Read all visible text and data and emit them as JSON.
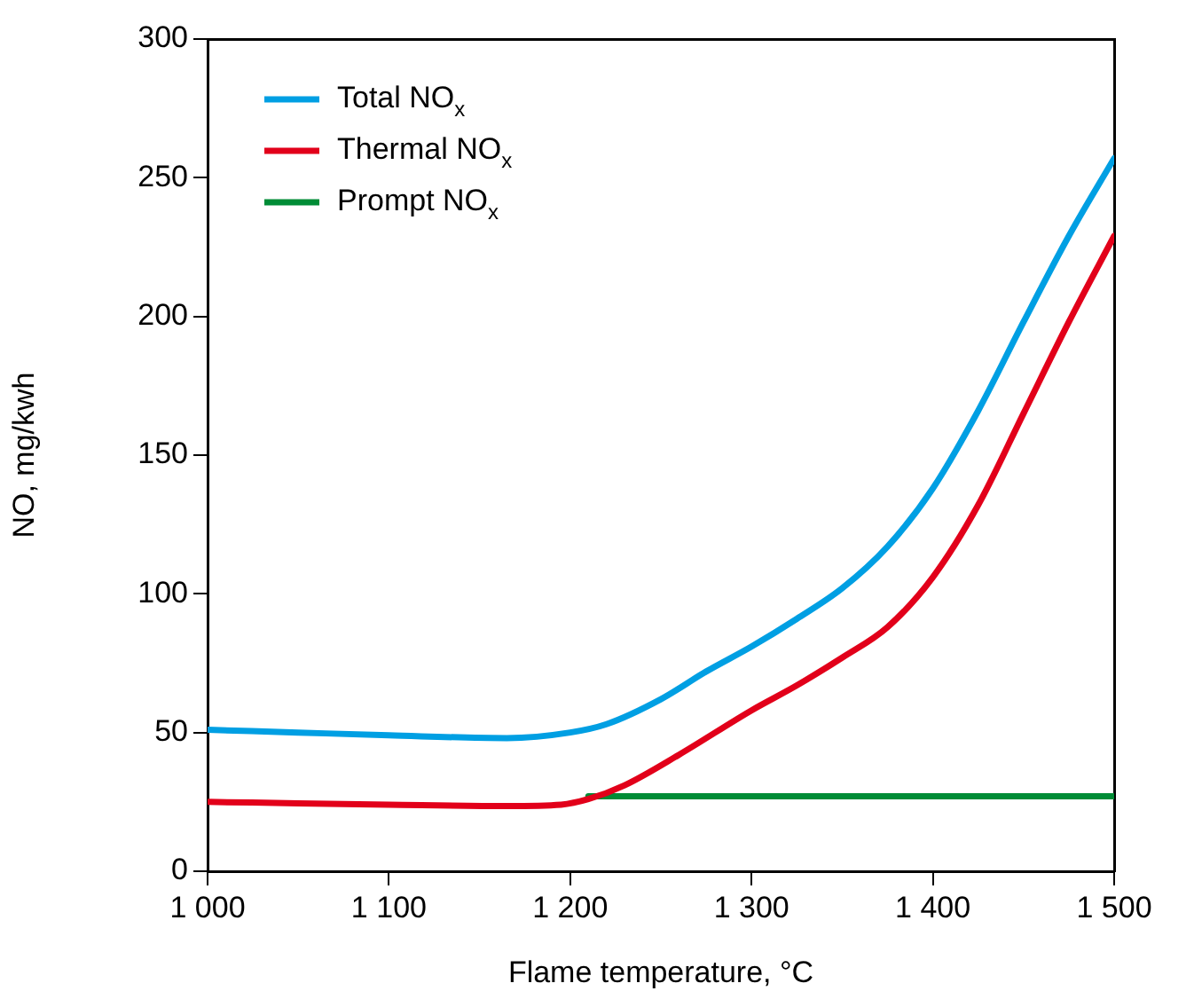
{
  "chart_data": {
    "type": "line",
    "xlabel": "Flame temperature, °C",
    "ylabel": "NO, mg/kwh",
    "xlim": [
      1000,
      1500
    ],
    "xticks": [
      {
        "value": 1000,
        "label": "1 000"
      },
      {
        "value": 1100,
        "label": "1 100"
      },
      {
        "value": 1200,
        "label": "1 200"
      },
      {
        "value": 1300,
        "label": "1 300"
      },
      {
        "value": 1400,
        "label": "1 400"
      },
      {
        "value": 1500,
        "label": "1 500"
      }
    ],
    "ylim": [
      0,
      300
    ],
    "yticks": [
      0,
      50,
      100,
      150,
      200,
      250,
      300
    ],
    "grid": false,
    "legend": "top left",
    "line_style": "solid",
    "marker": "none",
    "series": [
      {
        "name": "Total NO$_{x}$",
        "color": "#009fe3",
        "x": [
          1000,
          1050,
          1100,
          1165,
          1200,
          1220,
          1250,
          1275,
          1300,
          1325,
          1350,
          1375,
          1400,
          1425,
          1450,
          1475,
          1500
        ],
        "values": [
          51,
          50,
          49,
          48,
          50,
          53,
          62,
          72,
          81,
          91,
          102,
          117,
          138,
          166,
          198,
          229,
          257
        ]
      },
      {
        "name": "Thermal NO$_{x}$",
        "color": "#e2001a",
        "x": [
          1000,
          1050,
          1100,
          1165,
          1195,
          1210,
          1230,
          1260,
          1300,
          1325,
          1350,
          1375,
          1400,
          1425,
          1450,
          1475,
          1500
        ],
        "values": [
          25,
          24.5,
          24,
          23.5,
          24,
          26,
          31,
          42,
          58,
          67,
          77,
          88,
          106,
          132,
          165,
          198,
          229
        ]
      },
      {
        "name": "Prompt NO$_{x}$",
        "color": "#008c36",
        "x": [
          1210,
          1500
        ],
        "values": [
          27,
          27
        ]
      }
    ]
  }
}
